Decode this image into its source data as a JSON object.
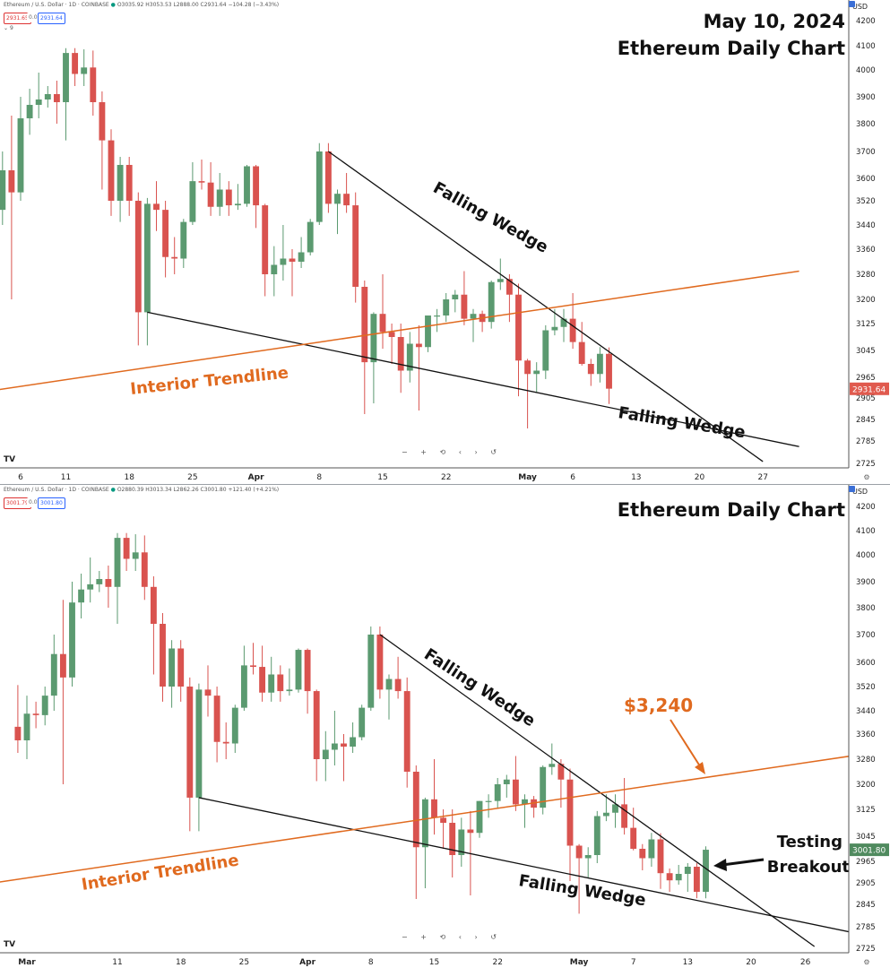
{
  "panel1": {
    "header": "Ethereum / U.S. Dollar · 1D · COINBASE",
    "ohlc": "O3035.92 H3053.53 L2888.00 C2931.64 −104.28 (−3.43%)",
    "bid": "2931.65",
    "spread": "0.01",
    "ask": "2931.64",
    "indicator_count": "9",
    "title_line1": "May 10, 2024",
    "title_line2": "Ethereum Daily Chart",
    "last_price": "2931.64",
    "annotations": {
      "wedge_upper": "Falling Wedge",
      "wedge_lower": "Falling Wedge",
      "trendline": "Interior Trendline"
    },
    "x_labels": [
      {
        "label": "6",
        "date": "2024-03-06"
      },
      {
        "label": "11",
        "date": "2024-03-11"
      },
      {
        "label": "18",
        "date": "2024-03-18"
      },
      {
        "label": "25",
        "date": "2024-03-25"
      },
      {
        "label": "Apr",
        "date": "2024-04-01"
      },
      {
        "label": "8",
        "date": "2024-04-08"
      },
      {
        "label": "15",
        "date": "2024-04-15"
      },
      {
        "label": "22",
        "date": "2024-04-22"
      },
      {
        "label": "May",
        "date": "2024-05-01"
      },
      {
        "label": "6",
        "date": "2024-05-06"
      },
      {
        "label": "13",
        "date": "2024-05-13"
      },
      {
        "label": "20",
        "date": "2024-05-20"
      },
      {
        "label": "27",
        "date": "2024-05-27"
      }
    ]
  },
  "panel2": {
    "header": "Ethereum / U.S. Dollar · 1D · COINBASE",
    "ohlc": "O2880.39 H3013.34 L2862.26 C3001.80 +121.40 (+4.21%)",
    "bid": "3001.79",
    "spread": "0.01",
    "ask": "3001.80",
    "indicator_count": "9",
    "title": "Ethereum Daily Chart",
    "last_price": "3001.80",
    "annotations": {
      "wedge_upper": "Falling Wedge",
      "wedge_lower": "Falling Wedge",
      "trendline": "Interior Trendline",
      "target": "$3,240",
      "breakout_line1": "Testing",
      "breakout_line2": "Breakout"
    },
    "x_labels": [
      {
        "label": "Mar",
        "date": "2024-03-01"
      },
      {
        "label": "11",
        "date": "2024-03-11"
      },
      {
        "label": "18",
        "date": "2024-03-18"
      },
      {
        "label": "25",
        "date": "2024-03-25"
      },
      {
        "label": "Apr",
        "date": "2024-04-01"
      },
      {
        "label": "8",
        "date": "2024-04-08"
      },
      {
        "label": "15",
        "date": "2024-04-15"
      },
      {
        "label": "22",
        "date": "2024-04-22"
      },
      {
        "label": "May",
        "date": "2024-05-01"
      },
      {
        "label": "7",
        "date": "2024-05-07"
      },
      {
        "label": "13",
        "date": "2024-05-13"
      },
      {
        "label": "20",
        "date": "2024-05-20"
      },
      {
        "label": "26",
        "date": "2024-05-26"
      }
    ]
  },
  "chart_data": {
    "type": "candlestick",
    "symbol": "Ethereum / U.S. Dollar",
    "interval": "1D",
    "exchange": "COINBASE",
    "y_axis_unit": "USD",
    "y_ticks": [
      2725,
      2785,
      2845,
      2905,
      2965,
      3045,
      3125,
      3200,
      3280,
      3360,
      3440,
      3520,
      3600,
      3700,
      3800,
      3900,
      4000,
      4100,
      4200
    ],
    "colors": {
      "up": "#5b9a70",
      "down": "#d9534f",
      "trendline": "#e06a1f",
      "wedge": "#111111",
      "last_down": "#e05a4e",
      "last_up": "#4f8a5e"
    },
    "candles": [
      {
        "date": "2024-02-29",
        "o": 3385,
        "h": 3525,
        "l": 3300,
        "c": 3340
      },
      {
        "date": "2024-03-01",
        "o": 3340,
        "h": 3490,
        "l": 3280,
        "c": 3430
      },
      {
        "date": "2024-03-02",
        "o": 3430,
        "h": 3470,
        "l": 3380,
        "c": 3425
      },
      {
        "date": "2024-03-03",
        "o": 3425,
        "h": 3520,
        "l": 3390,
        "c": 3490
      },
      {
        "date": "2024-03-04",
        "o": 3490,
        "h": 3700,
        "l": 3440,
        "c": 3630
      },
      {
        "date": "2024-03-05",
        "o": 3630,
        "h": 3830,
        "l": 3200,
        "c": 3550
      },
      {
        "date": "2024-03-06",
        "o": 3550,
        "h": 3900,
        "l": 3520,
        "c": 3820
      },
      {
        "date": "2024-03-07",
        "o": 3820,
        "h": 3930,
        "l": 3760,
        "c": 3870
      },
      {
        "date": "2024-03-08",
        "o": 3870,
        "h": 3990,
        "l": 3820,
        "c": 3890
      },
      {
        "date": "2024-03-09",
        "o": 3890,
        "h": 3940,
        "l": 3860,
        "c": 3910
      },
      {
        "date": "2024-03-10",
        "o": 3910,
        "h": 3960,
        "l": 3800,
        "c": 3880
      },
      {
        "date": "2024-03-11",
        "o": 3880,
        "h": 4090,
        "l": 3740,
        "c": 4070
      },
      {
        "date": "2024-03-12",
        "o": 4070,
        "h": 4090,
        "l": 3940,
        "c": 3985
      },
      {
        "date": "2024-03-13",
        "o": 3985,
        "h": 4085,
        "l": 3940,
        "c": 4010
      },
      {
        "date": "2024-03-14",
        "o": 4010,
        "h": 4080,
        "l": 3830,
        "c": 3880
      },
      {
        "date": "2024-03-15",
        "o": 3880,
        "h": 3920,
        "l": 3560,
        "c": 3740
      },
      {
        "date": "2024-03-16",
        "o": 3740,
        "h": 3780,
        "l": 3470,
        "c": 3520
      },
      {
        "date": "2024-03-17",
        "o": 3520,
        "h": 3680,
        "l": 3450,
        "c": 3650
      },
      {
        "date": "2024-03-18",
        "o": 3650,
        "h": 3680,
        "l": 3470,
        "c": 3520
      },
      {
        "date": "2024-03-19",
        "o": 3520,
        "h": 3550,
        "l": 3060,
        "c": 3160
      },
      {
        "date": "2024-03-20",
        "o": 3160,
        "h": 3530,
        "l": 3060,
        "c": 3510
      },
      {
        "date": "2024-03-21",
        "o": 3510,
        "h": 3590,
        "l": 3420,
        "c": 3490
      },
      {
        "date": "2024-03-22",
        "o": 3490,
        "h": 3520,
        "l": 3270,
        "c": 3335
      },
      {
        "date": "2024-03-23",
        "o": 3335,
        "h": 3400,
        "l": 3280,
        "c": 3330
      },
      {
        "date": "2024-03-24",
        "o": 3330,
        "h": 3460,
        "l": 3300,
        "c": 3450
      },
      {
        "date": "2024-03-25",
        "o": 3450,
        "h": 3660,
        "l": 3440,
        "c": 3590
      },
      {
        "date": "2024-03-26",
        "o": 3590,
        "h": 3670,
        "l": 3560,
        "c": 3585
      },
      {
        "date": "2024-03-27",
        "o": 3585,
        "h": 3660,
        "l": 3470,
        "c": 3500
      },
      {
        "date": "2024-03-28",
        "o": 3500,
        "h": 3620,
        "l": 3470,
        "c": 3560
      },
      {
        "date": "2024-03-29",
        "o": 3560,
        "h": 3590,
        "l": 3470,
        "c": 3505
      },
      {
        "date": "2024-03-30",
        "o": 3505,
        "h": 3580,
        "l": 3490,
        "c": 3510
      },
      {
        "date": "2024-03-31",
        "o": 3510,
        "h": 3650,
        "l": 3500,
        "c": 3645
      },
      {
        "date": "2024-04-01",
        "o": 3645,
        "h": 3650,
        "l": 3430,
        "c": 3505
      },
      {
        "date": "2024-04-02",
        "o": 3505,
        "h": 3510,
        "l": 3210,
        "c": 3280
      },
      {
        "date": "2024-04-03",
        "o": 3280,
        "h": 3370,
        "l": 3210,
        "c": 3310
      },
      {
        "date": "2024-04-04",
        "o": 3310,
        "h": 3440,
        "l": 3260,
        "c": 3330
      },
      {
        "date": "2024-04-05",
        "o": 3330,
        "h": 3360,
        "l": 3210,
        "c": 3320
      },
      {
        "date": "2024-04-06",
        "o": 3320,
        "h": 3400,
        "l": 3300,
        "c": 3350
      },
      {
        "date": "2024-04-07",
        "o": 3350,
        "h": 3460,
        "l": 3340,
        "c": 3450
      },
      {
        "date": "2024-04-08",
        "o": 3450,
        "h": 3730,
        "l": 3440,
        "c": 3700
      },
      {
        "date": "2024-04-09",
        "o": 3700,
        "h": 3730,
        "l": 3480,
        "c": 3510
      },
      {
        "date": "2024-04-10",
        "o": 3510,
        "h": 3560,
        "l": 3410,
        "c": 3545
      },
      {
        "date": "2024-04-11",
        "o": 3545,
        "h": 3620,
        "l": 3480,
        "c": 3505
      },
      {
        "date": "2024-04-12",
        "o": 3505,
        "h": 3550,
        "l": 3190,
        "c": 3240
      },
      {
        "date": "2024-04-13",
        "o": 3240,
        "h": 3260,
        "l": 2860,
        "c": 3010
      },
      {
        "date": "2024-04-14",
        "o": 3010,
        "h": 3160,
        "l": 2890,
        "c": 3155
      },
      {
        "date": "2024-04-15",
        "o": 3155,
        "h": 3280,
        "l": 3050,
        "c": 3100
      },
      {
        "date": "2024-04-16",
        "o": 3100,
        "h": 3125,
        "l": 3005,
        "c": 3085
      },
      {
        "date": "2024-04-17",
        "o": 3085,
        "h": 3125,
        "l": 2920,
        "c": 2985
      },
      {
        "date": "2024-04-18",
        "o": 2985,
        "h": 3100,
        "l": 2950,
        "c": 3065
      },
      {
        "date": "2024-04-19",
        "o": 3065,
        "h": 3120,
        "l": 2870,
        "c": 3055
      },
      {
        "date": "2024-04-20",
        "o": 3055,
        "h": 3150,
        "l": 3040,
        "c": 3150
      },
      {
        "date": "2024-04-21",
        "o": 3150,
        "h": 3170,
        "l": 3100,
        "c": 3150
      },
      {
        "date": "2024-04-22",
        "o": 3150,
        "h": 3220,
        "l": 3130,
        "c": 3200
      },
      {
        "date": "2024-04-23",
        "o": 3200,
        "h": 3230,
        "l": 3160,
        "c": 3215
      },
      {
        "date": "2024-04-24",
        "o": 3215,
        "h": 3290,
        "l": 3120,
        "c": 3140
      },
      {
        "date": "2024-04-25",
        "o": 3140,
        "h": 3170,
        "l": 3070,
        "c": 3155
      },
      {
        "date": "2024-04-26",
        "o": 3155,
        "h": 3165,
        "l": 3100,
        "c": 3130
      },
      {
        "date": "2024-04-27",
        "o": 3130,
        "h": 3260,
        "l": 3110,
        "c": 3255
      },
      {
        "date": "2024-04-28",
        "o": 3255,
        "h": 3330,
        "l": 3230,
        "c": 3265
      },
      {
        "date": "2024-04-29",
        "o": 3265,
        "h": 3280,
        "l": 3130,
        "c": 3215
      },
      {
        "date": "2024-04-30",
        "o": 3215,
        "h": 3250,
        "l": 2910,
        "c": 3015
      },
      {
        "date": "2024-05-01",
        "o": 3015,
        "h": 3020,
        "l": 2820,
        "c": 2975
      },
      {
        "date": "2024-05-02",
        "o": 2975,
        "h": 3010,
        "l": 2920,
        "c": 2985
      },
      {
        "date": "2024-05-03",
        "o": 2985,
        "h": 3120,
        "l": 2960,
        "c": 3105
      },
      {
        "date": "2024-05-04",
        "o": 3105,
        "h": 3170,
        "l": 3090,
        "c": 3115
      },
      {
        "date": "2024-05-05",
        "o": 3115,
        "h": 3170,
        "l": 3070,
        "c": 3140
      },
      {
        "date": "2024-05-06",
        "o": 3140,
        "h": 3220,
        "l": 3050,
        "c": 3070
      },
      {
        "date": "2024-05-07",
        "o": 3070,
        "h": 3130,
        "l": 3000,
        "c": 3005
      },
      {
        "date": "2024-05-08",
        "o": 3005,
        "h": 3020,
        "l": 2940,
        "c": 2975
      },
      {
        "date": "2024-05-09",
        "o": 2975,
        "h": 3055,
        "l": 2950,
        "c": 3035
      },
      {
        "date": "2024-05-10",
        "o": 3035,
        "h": 3054,
        "l": 2888,
        "c": 2932
      },
      {
        "date": "2024-05-11",
        "o": 2932,
        "h": 2945,
        "l": 2880,
        "c": 2912
      },
      {
        "date": "2024-05-12",
        "o": 2912,
        "h": 2955,
        "l": 2900,
        "c": 2930
      },
      {
        "date": "2024-05-13",
        "o": 2930,
        "h": 2960,
        "l": 2880,
        "c": 2950
      },
      {
        "date": "2024-05-14",
        "o": 2950,
        "h": 2960,
        "l": 2862,
        "c": 2880
      },
      {
        "date": "2024-05-15",
        "o": 2880,
        "h": 3013,
        "l": 2862,
        "c": 3002
      }
    ],
    "lines": [
      {
        "role": "wedge_upper",
        "points": [
          [
            "2024-04-09",
            3700
          ],
          [
            "2024-05-27",
            2730
          ]
        ]
      },
      {
        "role": "wedge_lower",
        "points": [
          [
            "2024-03-20",
            3160
          ],
          [
            "2024-05-31",
            2770
          ]
        ]
      },
      {
        "role": "interior_trendline",
        "points": [
          [
            "2024-02-25",
            2900
          ],
          [
            "2024-05-31",
            3290
          ]
        ]
      }
    ]
  }
}
